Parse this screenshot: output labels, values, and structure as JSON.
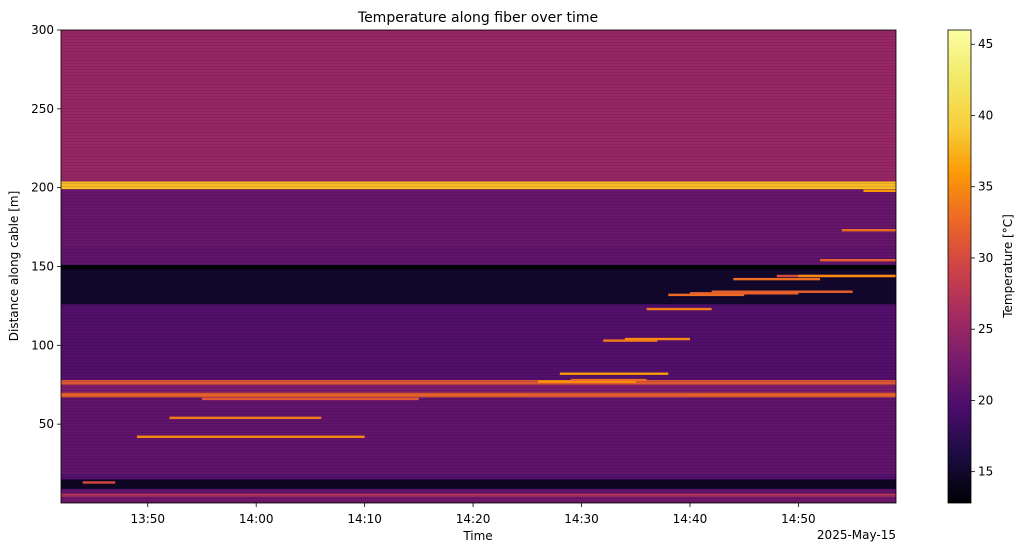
{
  "chart_data": {
    "type": "heatmap",
    "title": "Temperature along fiber over time",
    "xlabel": "Time",
    "ylabel": "Distance along cable [m]",
    "x_offset_label": "2025-May-15",
    "x_ticks": [
      "13:50",
      "14:00",
      "14:10",
      "14:20",
      "14:30",
      "14:40",
      "14:50"
    ],
    "x_range": [
      "13:42",
      "14:59"
    ],
    "y_ticks": [
      50,
      100,
      150,
      200,
      250,
      300
    ],
    "y_range": [
      0,
      300
    ],
    "colormap": "inferno",
    "colorbar": {
      "label": "Temperature [°C]",
      "range": [
        12.8,
        46
      ],
      "ticks": [
        15,
        20,
        25,
        30,
        35,
        40,
        45
      ]
    },
    "bands": [
      {
        "from": 0,
        "to": 4,
        "temp": 22
      },
      {
        "from": 4,
        "to": 6,
        "temp": 27
      },
      {
        "from": 6,
        "to": 9,
        "temp": 21
      },
      {
        "from": 9,
        "to": 15,
        "temp": 14.5
      },
      {
        "from": 15,
        "to": 18,
        "temp": 20
      },
      {
        "from": 18,
        "to": 67,
        "temp": 21
      },
      {
        "from": 67,
        "to": 70,
        "temp": 32
      },
      {
        "from": 70,
        "to": 75,
        "temp": 23
      },
      {
        "from": 75,
        "to": 78,
        "temp": 31
      },
      {
        "from": 78,
        "to": 126,
        "temp": 20
      },
      {
        "from": 126,
        "to": 148,
        "temp": 15
      },
      {
        "from": 148,
        "to": 151,
        "temp": 13
      },
      {
        "from": 151,
        "to": 163,
        "temp": 21
      },
      {
        "from": 163,
        "to": 199,
        "temp": 21.5
      },
      {
        "from": 199,
        "to": 204,
        "temp": 38
      },
      {
        "from": 204,
        "to": 300,
        "temp": 25
      }
    ],
    "hotspots": [
      {
        "start": "13:44",
        "end": "13:47",
        "distance": 13,
        "temp": 30
      },
      {
        "start": "13:49",
        "end": "14:10",
        "distance": 42,
        "temp": 35
      },
      {
        "start": "13:52",
        "end": "14:06",
        "distance": 54,
        "temp": 34
      },
      {
        "start": "13:55",
        "end": "14:15",
        "distance": 66,
        "temp": 31
      },
      {
        "start": "14:25",
        "end": "14:40",
        "distance": 68,
        "temp": 31
      },
      {
        "start": "14:26",
        "end": "14:35",
        "distance": 77,
        "temp": 36
      },
      {
        "start": "14:28",
        "end": "14:38",
        "distance": 82,
        "temp": 36
      },
      {
        "start": "14:29",
        "end": "14:36",
        "distance": 78,
        "temp": 33
      },
      {
        "start": "14:32",
        "end": "14:37",
        "distance": 103,
        "temp": 34
      },
      {
        "start": "14:34",
        "end": "14:40",
        "distance": 104,
        "temp": 35
      },
      {
        "start": "14:36",
        "end": "14:42",
        "distance": 123,
        "temp": 34
      },
      {
        "start": "14:38",
        "end": "14:45",
        "distance": 132,
        "temp": 33
      },
      {
        "start": "14:40",
        "end": "14:50",
        "distance": 133,
        "temp": 32
      },
      {
        "start": "14:42",
        "end": "14:55",
        "distance": 134,
        "temp": 32
      },
      {
        "start": "14:44",
        "end": "14:52",
        "distance": 142,
        "temp": 33
      },
      {
        "start": "14:48",
        "end": "14:59",
        "distance": 144,
        "temp": 30
      },
      {
        "start": "14:50",
        "end": "14:59",
        "distance": 144,
        "temp": 35
      },
      {
        "start": "14:52",
        "end": "14:59",
        "distance": 154,
        "temp": 32
      },
      {
        "start": "14:54",
        "end": "14:59",
        "distance": 173,
        "temp": 33
      },
      {
        "start": "14:56",
        "end": "14:59",
        "distance": 198,
        "temp": 36
      }
    ]
  }
}
